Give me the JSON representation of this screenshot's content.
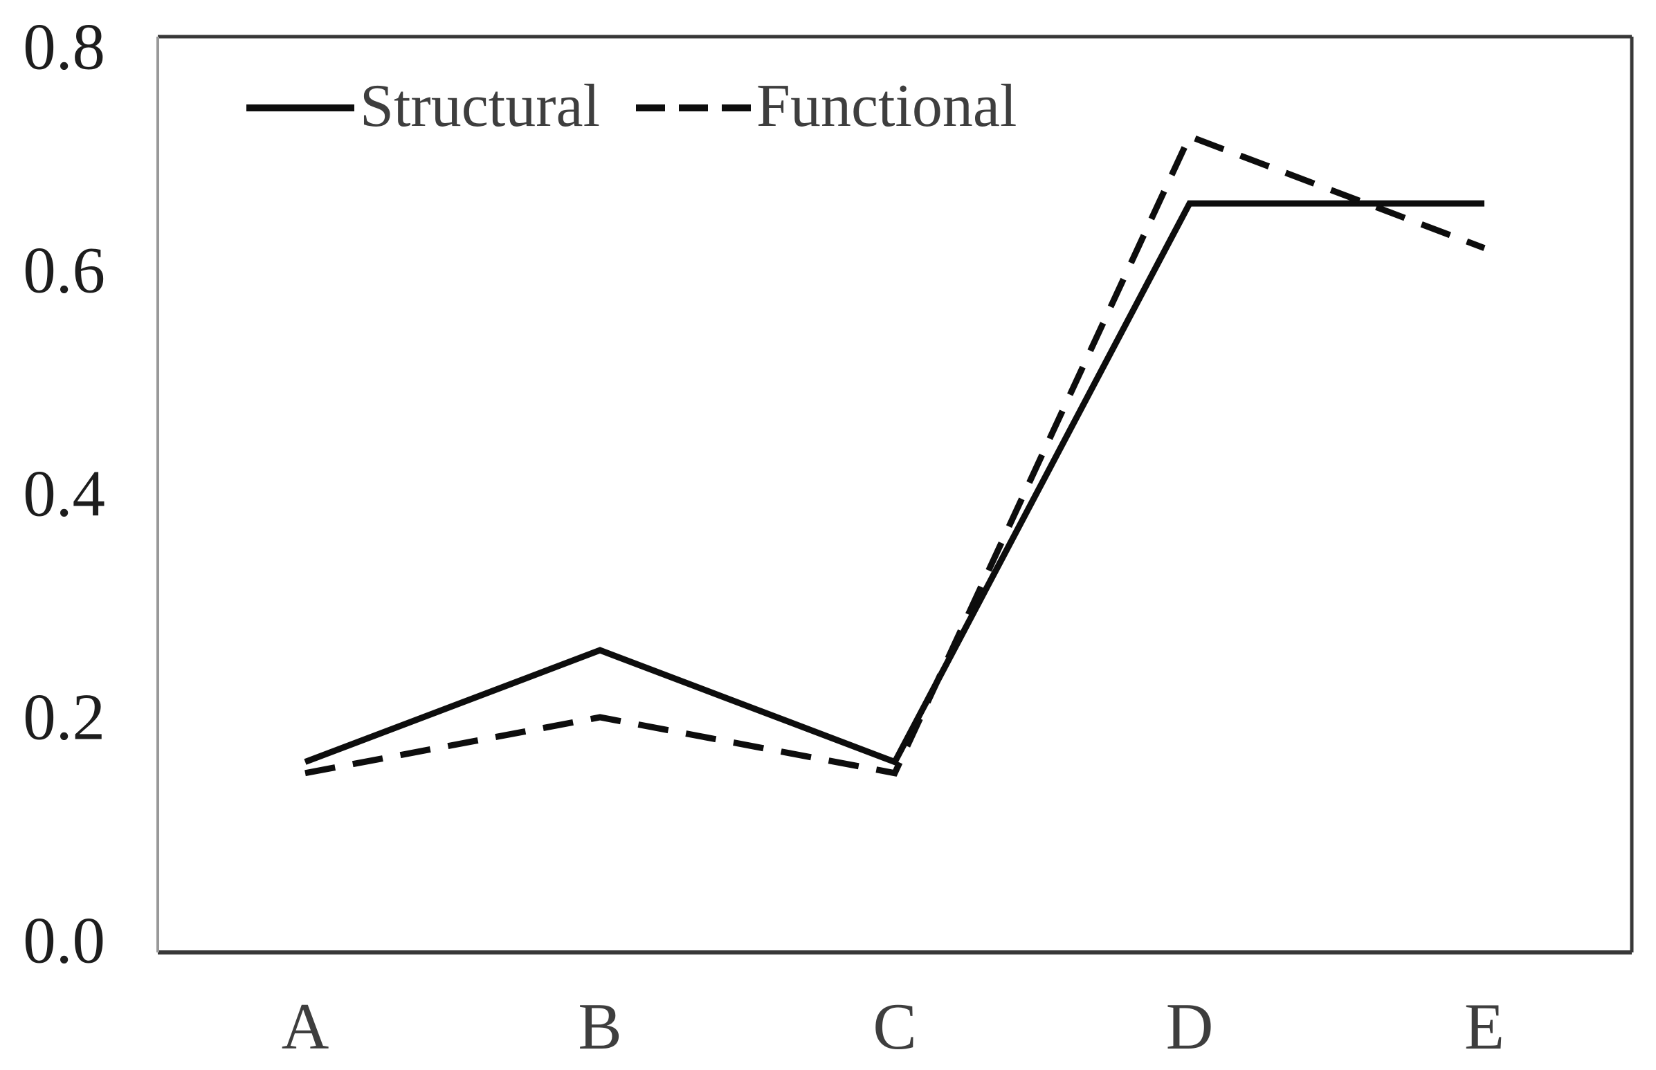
{
  "chart_data": {
    "type": "line",
    "title": "",
    "xlabel": "",
    "ylabel": "",
    "categories": [
      "A",
      "B",
      "C",
      "D",
      "E"
    ],
    "series": [
      {
        "name": "Structural",
        "style": "solid",
        "values": [
          0.16,
          0.26,
          0.16,
          0.66,
          0.66
        ]
      },
      {
        "name": "Functional",
        "style": "dashed",
        "values": [
          0.15,
          0.2,
          0.15,
          0.72,
          0.62
        ]
      }
    ],
    "ylim": [
      0.0,
      0.8
    ],
    "yticks": [
      0.0,
      0.2,
      0.4,
      0.6,
      0.8
    ],
    "ytick_labels": [
      "0.0",
      "0.2",
      "0.4",
      "0.6",
      "0.8"
    ],
    "grid": false,
    "legend_position": "top-inside",
    "line_color": "#0d0d0d",
    "frame_color": "#383838",
    "left_axis_color": "#999999",
    "tick_label_color": "#1d1d1d",
    "category_label_color": "#3e3e3e",
    "legend_text_color": "#3e3e3e"
  }
}
